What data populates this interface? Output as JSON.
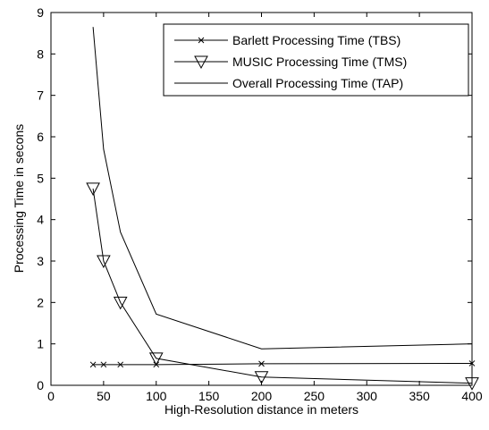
{
  "chart_data": {
    "type": "line",
    "xlabel": "High-Resolution distance in meters",
    "ylabel": "Processing Time in secons",
    "xlim": [
      0,
      400
    ],
    "ylim": [
      0,
      9
    ],
    "xticks": [
      0,
      50,
      100,
      150,
      200,
      250,
      300,
      350,
      400
    ],
    "yticks": [
      0,
      1,
      2,
      3,
      4,
      5,
      6,
      7,
      8,
      9
    ],
    "grid": false,
    "legend_position": "top-right",
    "series": [
      {
        "name": "Barlett Processing Time (TBS)",
        "marker": "x",
        "x": [
          40,
          50,
          66,
          100,
          200,
          400
        ],
        "y": [
          0.5,
          0.5,
          0.5,
          0.5,
          0.52,
          0.53
        ]
      },
      {
        "name": "MUSIC Processing Time (TMS)",
        "marker": "triangle-down",
        "x": [
          40,
          50,
          66,
          100,
          200,
          400
        ],
        "y": [
          4.75,
          3.0,
          2.0,
          0.65,
          0.2,
          0.05
        ]
      },
      {
        "name": "Overall Processing Time (TAP)",
        "marker": "none",
        "x": [
          40,
          50,
          66,
          100,
          200,
          400
        ],
        "y": [
          8.65,
          5.7,
          3.7,
          1.72,
          0.88,
          1.0
        ]
      }
    ]
  }
}
